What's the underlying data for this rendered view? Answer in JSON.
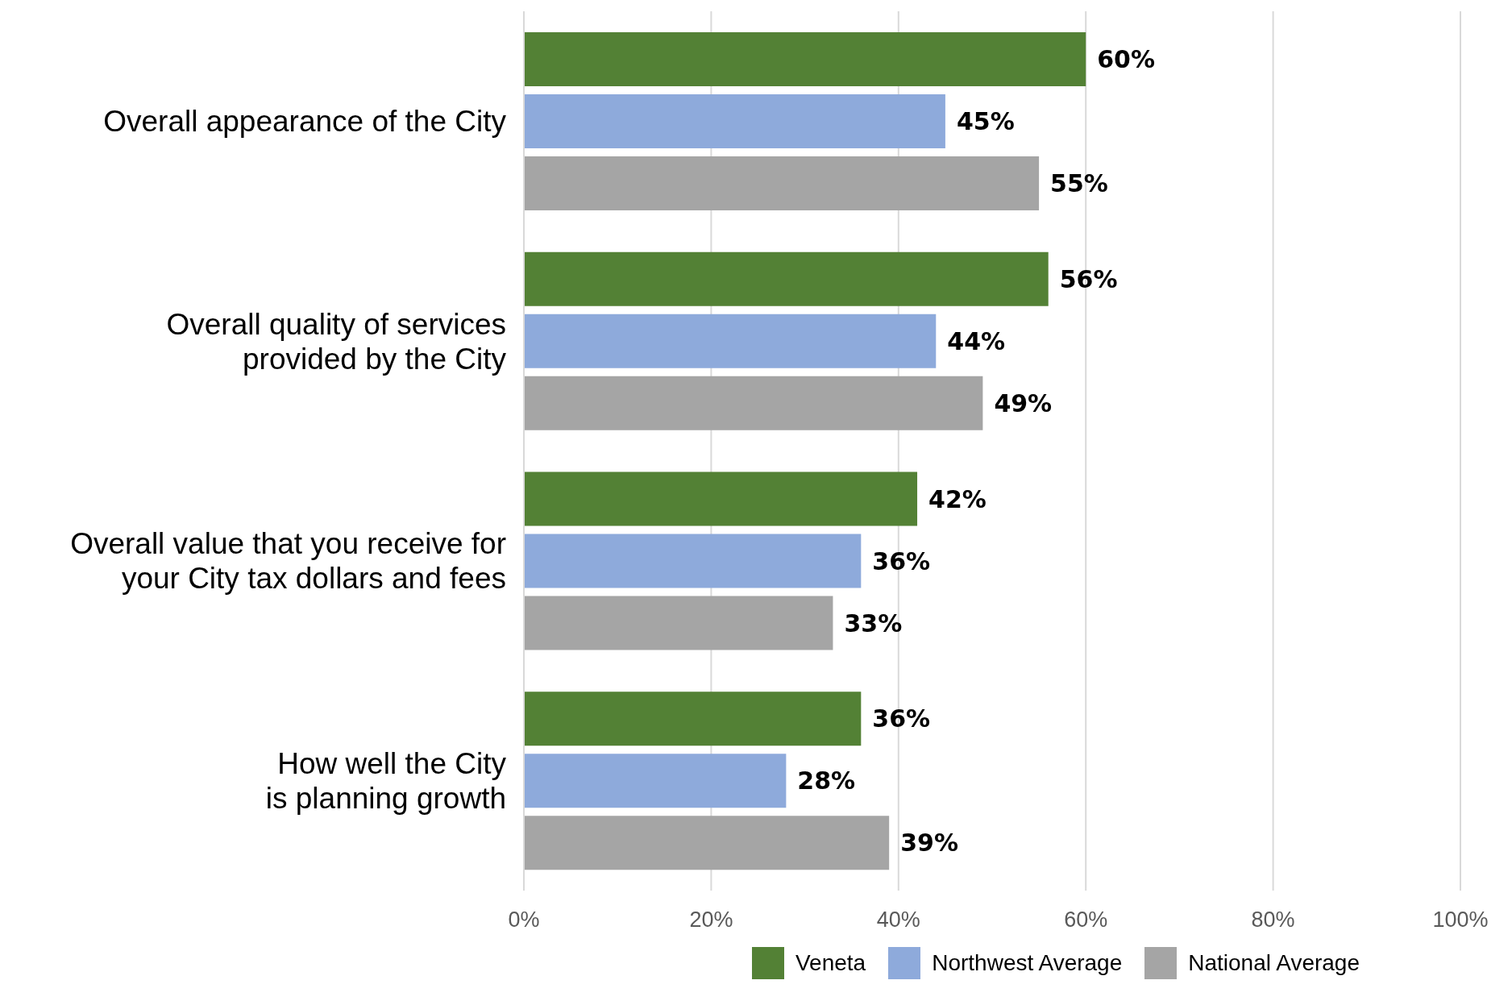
{
  "chart_data": {
    "type": "bar",
    "orientation": "horizontal",
    "categories": [
      "Overall appearance of the City",
      "Overall quality of services\nprovided by the City",
      "Overall value that you receive for\nyour City tax dollars and fees",
      "How well the City\nis planning growth"
    ],
    "series": [
      {
        "name": "Veneta",
        "color": "#538135",
        "values": [
          60,
          56,
          42,
          36
        ],
        "value_labels": [
          "60%",
          "56%",
          "42%",
          "36%"
        ]
      },
      {
        "name": "Northwest Average",
        "color": "#8eaadb",
        "values": [
          45,
          44,
          36,
          28
        ],
        "value_labels": [
          "45%",
          "44%",
          "36%",
          "28%"
        ]
      },
      {
        "name": "National Average",
        "color": "#a5a5a5",
        "values": [
          55,
          49,
          33,
          39
        ],
        "value_labels": [
          "55%",
          "49%",
          "33%",
          "39%"
        ]
      }
    ],
    "xlim": [
      0,
      100
    ],
    "xticks": [
      {
        "value": 0,
        "label": "0%"
      },
      {
        "value": 20,
        "label": "20%"
      },
      {
        "value": 40,
        "label": "40%"
      },
      {
        "value": 60,
        "label": "60%"
      },
      {
        "value": 80,
        "label": "80%"
      },
      {
        "value": 100,
        "label": "100%"
      }
    ],
    "grid": "x",
    "legend": "bottom"
  }
}
